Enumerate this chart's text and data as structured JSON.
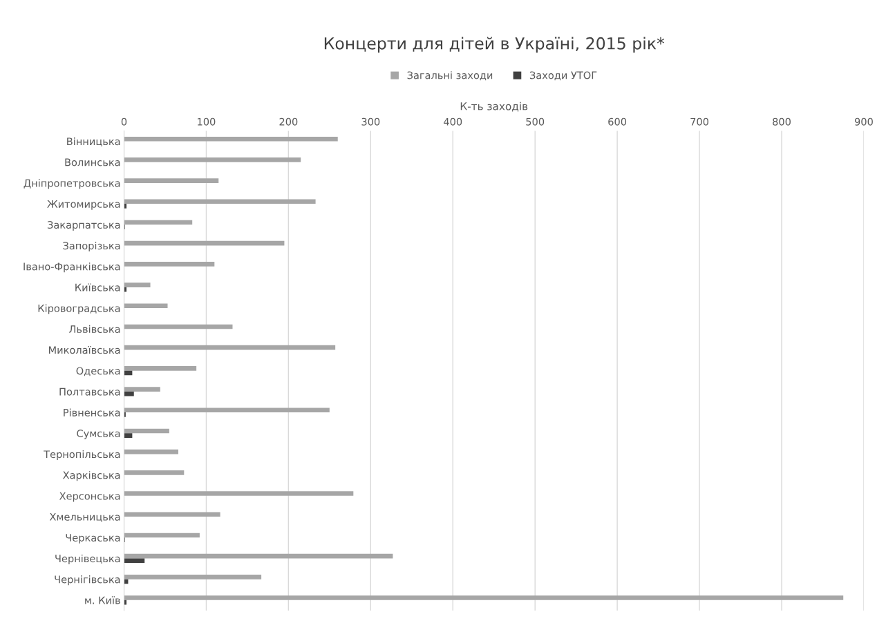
{
  "chart_data": {
    "type": "bar",
    "orientation": "horizontal",
    "title": "Концерти для дітей в Україні, 2015 рік*",
    "xlabel": "К-ть заходів",
    "categories": [
      "Вінницька",
      "Волинська",
      "Дніпропетровська",
      "Житомирська",
      "Закарпатська",
      "Запорізька",
      "Івано-Франківська",
      "Київська",
      "Кіровоградська",
      "Львівська",
      "Миколаївська",
      "Одеська",
      "Полтавська",
      "Рівненська",
      "Сумська",
      "Тернопільська",
      "Харківська",
      "Херсонська",
      "Хмельницька",
      "Черкаська",
      "Чернівецька",
      "Чернігівська",
      "м. Київ"
    ],
    "series": [
      {
        "name": "Загальні заходи",
        "color": "#a6a6a6",
        "values": [
          260,
          215,
          115,
          233,
          83,
          195,
          110,
          32,
          53,
          132,
          257,
          88,
          44,
          250,
          55,
          66,
          73,
          279,
          117,
          92,
          327,
          167,
          875
        ]
      },
      {
        "name": "Заходи УТОГ",
        "color": "#404040",
        "values": [
          null,
          null,
          null,
          3,
          1,
          null,
          null,
          3,
          null,
          null,
          null,
          10,
          12,
          2,
          10,
          null,
          null,
          null,
          null,
          1,
          25,
          5,
          3
        ]
      }
    ],
    "xlim": [
      0,
      900
    ],
    "xticks": [
      0,
      100,
      200,
      300,
      400,
      500,
      600,
      700,
      800,
      900
    ],
    "grid": "x",
    "legend": "top"
  }
}
